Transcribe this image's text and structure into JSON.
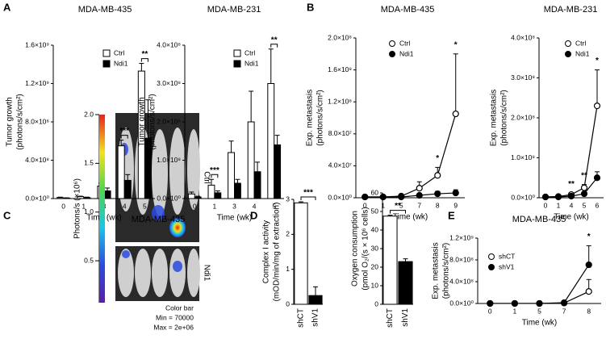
{
  "chart_data": [
    {
      "type": "bar",
      "panel": "A",
      "title": "MDA-MB-435",
      "xlabel": "Time (wk)",
      "ylabel": [
        "Tumor growth",
        "(photons/s/cm²)"
      ],
      "categories": [
        "0",
        "1",
        "3",
        "4",
        "5"
      ],
      "series": [
        {
          "name": "Ctrl",
          "color": "#ffffff",
          "values": [
            10000000,
            20000000,
            130000000,
            550000000,
            1330000000
          ],
          "errors": [
            5000000,
            5000000,
            30000000,
            60000000,
            80000000
          ]
        },
        {
          "name": "Ndi1",
          "color": "#000000",
          "values": [
            5000000,
            10000000,
            80000000,
            190000000,
            630000000
          ],
          "errors": [
            3000000,
            5000000,
            30000000,
            60000000,
            400000000
          ]
        }
      ],
      "ylim": [
        0,
        1600000000
      ],
      "yticks": [
        {
          "value": 0,
          "label": "0.0×10⁰"
        },
        {
          "value": 400000000,
          "label": "4.0×10⁸"
        },
        {
          "value": 800000000,
          "label": "8.0×10⁸"
        },
        {
          "value": 1200000000,
          "label": "1.2×10⁹"
        },
        {
          "value": 1600000000,
          "label": "1.6×10⁹"
        }
      ],
      "annotations": [
        {
          "text": "***",
          "category": "4"
        },
        {
          "text": "**",
          "category": "5"
        }
      ]
    },
    {
      "type": "bar",
      "title": "MDA-MB-231",
      "xlabel": "Time (wk)",
      "ylabel": [
        "Tumor growth",
        "(photons/s/cm²)"
      ],
      "categories": [
        "0",
        "1",
        "3",
        "4",
        "5"
      ],
      "series": [
        {
          "name": "Ctrl",
          "color": "#ffffff",
          "values": [
            12000000,
            35000000,
            120000000,
            200000000,
            300000000
          ],
          "errors": [
            5000000,
            15000000,
            30000000,
            80000000,
            90000000
          ]
        },
        {
          "name": "Ndi1",
          "color": "#000000",
          "values": [
            4000000,
            15000000,
            40000000,
            70000000,
            140000000
          ],
          "errors": [
            2000000,
            5000000,
            10000000,
            25000000,
            25000000
          ]
        }
      ],
      "ylim": [
        0,
        400000000
      ],
      "yticks": [
        {
          "value": 0,
          "label": "0.0×10⁰"
        },
        {
          "value": 100000000,
          "label": "1.0×10⁸"
        },
        {
          "value": 200000000,
          "label": "2.0×10⁸"
        },
        {
          "value": 300000000,
          "label": "3.0×10⁸"
        },
        {
          "value": 400000000,
          "label": "4.0×10⁸"
        }
      ],
      "annotations": [
        {
          "text": "***",
          "category": "1"
        },
        {
          "text": "**",
          "category": "5"
        }
      ]
    },
    {
      "type": "line",
      "panel": "B",
      "title": "MDA-MB-435",
      "xlabel": "Time (wk)",
      "ylabel": [
        "Exp. metastasis",
        "(photons/s/cm²)"
      ],
      "categories": [
        "0",
        "1",
        "5",
        "7",
        "8",
        "9"
      ],
      "series": [
        {
          "name": "Ctrl",
          "color": "#ffffff",
          "values": [
            1000000,
            1000000,
            2000000,
            12000000,
            28000000,
            105000000
          ],
          "errors": [
            1000000,
            1000000,
            2000000,
            8000000,
            10000000,
            75000000
          ]
        },
        {
          "name": "Ndi1",
          "color": "#000000",
          "values": [
            1000000,
            1000000,
            1000000,
            3000000,
            5000000,
            6000000
          ],
          "errors": [
            500000,
            500000,
            1000000,
            2000000,
            3000000,
            4000000
          ]
        }
      ],
      "ylim": [
        0,
        200000000
      ],
      "yticks": [
        {
          "value": 0,
          "label": "0.0×10⁰"
        },
        {
          "value": 40000000,
          "label": "4.0×10⁷"
        },
        {
          "value": 80000000,
          "label": "8.0×10⁷"
        },
        {
          "value": 120000000,
          "label": "1.2×10⁸"
        },
        {
          "value": 160000000,
          "label": "1.6×10⁸"
        },
        {
          "value": 200000000,
          "label": "2.0×10⁸"
        }
      ],
      "annotations": [
        {
          "text": "*",
          "category": "8"
        },
        {
          "text": "*",
          "category": "9"
        }
      ]
    },
    {
      "type": "line",
      "title": "MDA-MB-231",
      "xlabel": "Time (wk)",
      "ylabel": [
        "Exp. metastasis",
        "(photons/s/cm²)"
      ],
      "categories": [
        "0",
        "1",
        "4",
        "5",
        "6"
      ],
      "series": [
        {
          "name": "Ctrl",
          "color": "#ffffff",
          "values": [
            2000000,
            3000000,
            8000000,
            25000000,
            230000000
          ],
          "errors": [
            1000000,
            1000000,
            3000000,
            8000000,
            90000000
          ]
        },
        {
          "name": "Ndi1",
          "color": "#000000",
          "values": [
            2000000,
            2000000,
            4000000,
            10000000,
            50000000
          ],
          "errors": [
            1000000,
            1000000,
            2000000,
            5000000,
            15000000
          ]
        }
      ],
      "ylim": [
        0,
        400000000
      ],
      "yticks": [
        {
          "value": 0,
          "label": "0.0×10⁰"
        },
        {
          "value": 100000000,
          "label": "1.0×10⁸"
        },
        {
          "value": 200000000,
          "label": "2.0×10⁸"
        },
        {
          "value": 300000000,
          "label": "3.0×10⁸"
        },
        {
          "value": 400000000,
          "label": "4.0×10⁸"
        }
      ],
      "annotations": [
        {
          "text": "**",
          "category": "4"
        },
        {
          "text": "**",
          "category": "5"
        },
        {
          "text": "*",
          "category": "6"
        }
      ]
    },
    {
      "type": "colorbar",
      "panel": "C",
      "title": "MDA-MB-435",
      "ylabel": [
        "Photons/s (×10⁶)"
      ],
      "ylim": [
        0.07,
        2.0
      ],
      "yticks": [
        0.5,
        {
          "value": 1.0,
          "label": "1.0"
        },
        1.5,
        {
          "value": 2.0,
          "label": "2.0"
        }
      ],
      "rows": [
        "Ctrl",
        "Ndi1"
      ],
      "notes": [
        "Color bar",
        "Min = 70000",
        "Max = 2e+06"
      ]
    },
    {
      "type": "bar",
      "panel": "D",
      "ylabel": [
        "Complex I activity",
        "(mOD/min/mg of extraction)"
      ],
      "categories": [
        "shCT",
        "shV1"
      ],
      "values": [
        2.9,
        0.25
      ],
      "errors": [
        0.03,
        0.25
      ],
      "colors": [
        "#ffffff",
        "#000000"
      ],
      "ylim": [
        0,
        3
      ],
      "yticks": [
        0,
        1,
        2,
        3
      ],
      "annotations": [
        {
          "text": "***"
        }
      ]
    },
    {
      "type": "bar",
      "ylabel": [
        "Oxygen consumption",
        "(pmol O₂/(s × 10⁶ cells)"
      ],
      "categories": [
        "shCT",
        "shV1"
      ],
      "values": [
        47.5,
        23
      ],
      "errors": [
        0.5,
        1.5
      ],
      "colors": [
        "#ffffff",
        "#000000"
      ],
      "ylim": [
        0,
        60
      ],
      "yticks": [
        0,
        10,
        20,
        30,
        40,
        50,
        60
      ],
      "annotations": [
        {
          "text": "**"
        }
      ]
    },
    {
      "type": "line",
      "panel": "E",
      "title": "MDA-MB-435",
      "xlabel": "Time (wk)",
      "ylabel": [
        "Exp. metastasis",
        "(photons/s/cm²)"
      ],
      "categories": [
        "0",
        "1",
        "5",
        "7",
        "8"
      ],
      "series": [
        {
          "name": "shCT",
          "color": "#ffffff",
          "values": [
            1000000,
            1000000,
            1000000,
            8000000,
            220000000
          ],
          "errors": [
            500000,
            500000,
            500000,
            5000000,
            220000000
          ]
        },
        {
          "name": "shV1",
          "color": "#000000",
          "values": [
            1000000,
            1000000,
            1000000,
            15000000,
            710000000
          ],
          "errors": [
            500000,
            500000,
            500000,
            10000000,
            350000000
          ]
        }
      ],
      "ylim": [
        0,
        1200000000
      ],
      "yticks": [
        {
          "value": 0,
          "label": "0.0×10⁰"
        },
        {
          "value": 400000000,
          "label": "4.0×10⁸"
        },
        {
          "value": 800000000,
          "label": "8.0×10⁸"
        },
        {
          "value": 1200000000,
          "label": "1.2×10⁹"
        }
      ],
      "annotations": [
        {
          "text": "*",
          "category": "8"
        }
      ]
    }
  ]
}
